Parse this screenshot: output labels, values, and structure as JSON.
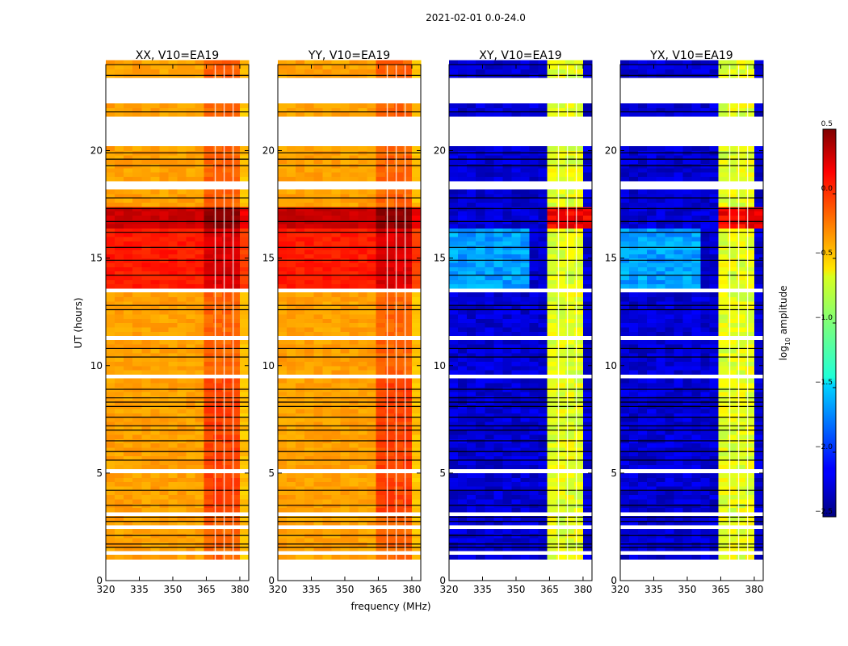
{
  "figure": {
    "suptitle": "2021-02-01 0.0-24.0",
    "ylabel": "UT (hours)",
    "xlabel": "frequency (MHz)"
  },
  "chart_data": {
    "type": "heatmap",
    "x": {
      "label": "frequency (MHz)",
      "range": [
        320,
        384
      ],
      "ticks": [
        320,
        335,
        350,
        365,
        380
      ]
    },
    "y": {
      "label": "UT (hours)",
      "range": [
        0,
        24
      ],
      "ticks": [
        0,
        5,
        10,
        15,
        20
      ]
    },
    "panels": [
      {
        "title": "XX, V10=EA19",
        "type": "parallel"
      },
      {
        "title": "YY, V10=EA19",
        "type": "parallel"
      },
      {
        "title": "XY, V10=EA19",
        "type": "cross"
      },
      {
        "title": "YX, V10=EA19",
        "type": "cross"
      }
    ],
    "colorbar": {
      "label": "log10 amplitude",
      "label_main": "log",
      "label_sub": "10",
      "label_tail": " amplitude",
      "range": [
        -2.5,
        0.5
      ],
      "ticks": [
        0.5,
        0.0,
        -0.5,
        -1.0,
        -1.5,
        -2.0,
        -2.5
      ],
      "tick_labels": [
        "0.5",
        "0.0",
        "−0.5",
        "−1.0",
        "−1.5",
        "−2.0",
        "−2.5"
      ],
      "colormap": "jet"
    },
    "blank_ut_ranges": [
      [
        0,
        0.9
      ],
      [
        1.3,
        1.4
      ],
      [
        2.5,
        2.6
      ],
      [
        3.0,
        3.2
      ],
      [
        5.0,
        5.2
      ],
      [
        9.3,
        9.5
      ],
      [
        11.1,
        11.3
      ],
      [
        13.3,
        13.5
      ],
      [
        18.2,
        18.6
      ],
      [
        20.2,
        21.5
      ],
      [
        22.1,
        23.3
      ]
    ],
    "flag_lines_ut": [
      1.55,
      1.7,
      2.1,
      2.75,
      2.95,
      3.5,
      4.2,
      5.6,
      6.0,
      6.5,
      7.0,
      7.2,
      7.6,
      8.1,
      8.3,
      8.5,
      8.9,
      10.4,
      10.8,
      12.6,
      12.8,
      14.2,
      14.9,
      15.5,
      16.2,
      16.7,
      17.3,
      17.8,
      19.3,
      19.6,
      19.9,
      21.8,
      23.5
    ]
  }
}
